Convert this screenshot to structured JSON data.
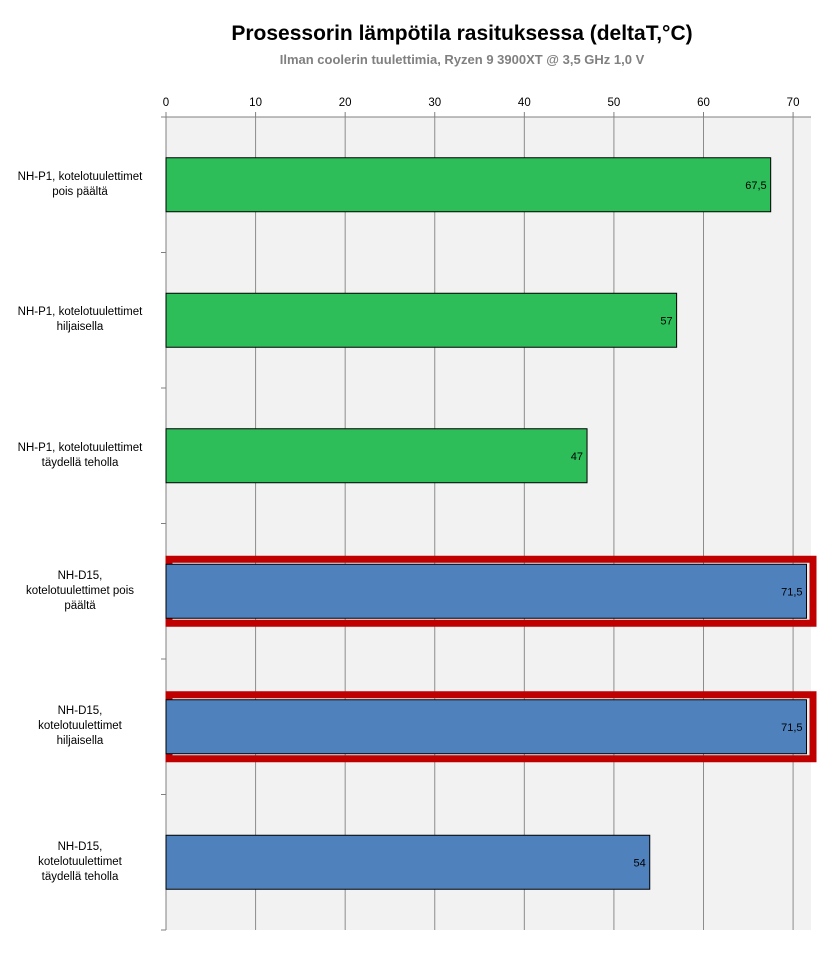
{
  "chart_data": {
    "type": "bar",
    "orientation": "horizontal",
    "title": "Prosessorin lämpötila rasituksessa (deltaT,°C)",
    "subtitle": "Ilman coolerin tuulettimia, Ryzen 9 3900XT @ 3,5 GHz 1,0 V",
    "xlim": [
      0,
      72
    ],
    "ticks": [
      0,
      10,
      20,
      30,
      40,
      50,
      60,
      70
    ],
    "tick_labels": [
      "0",
      "10",
      "20",
      "30",
      "40",
      "50",
      "60",
      "70"
    ],
    "axis_position": "top",
    "grid": true,
    "categories": [
      [
        "NH-P1, kotelotuulettimet",
        "pois päältä"
      ],
      [
        "NH-P1, kotelotuulettimet",
        "hiljaisella"
      ],
      [
        "NH-P1, kotelotuulettimet",
        "täydellä teholla"
      ],
      [
        "NH-D15,",
        "kotelotuulettimet pois",
        "päältä"
      ],
      [
        "NH-D15,",
        "kotelotuulettimet",
        "hiljaisella"
      ],
      [
        "NH-D15,",
        "kotelotuulettimet",
        "täydellä teholla"
      ]
    ],
    "values": [
      67.5,
      57,
      47,
      71.5,
      71.5,
      54
    ],
    "value_labels": [
      "67,5",
      "57",
      "47",
      "71,5",
      "71,5",
      "54"
    ],
    "bar_colors": [
      "#2dbe5a",
      "#2dbe5a",
      "#2dbe5a",
      "#4f81bd",
      "#4f81bd",
      "#4f81bd"
    ],
    "highlighted": [
      false,
      false,
      false,
      true,
      true,
      false
    ],
    "highlight_color": "#c00000",
    "plot_background": "#f2f2f2",
    "grid_color": "#8c8c8c"
  }
}
